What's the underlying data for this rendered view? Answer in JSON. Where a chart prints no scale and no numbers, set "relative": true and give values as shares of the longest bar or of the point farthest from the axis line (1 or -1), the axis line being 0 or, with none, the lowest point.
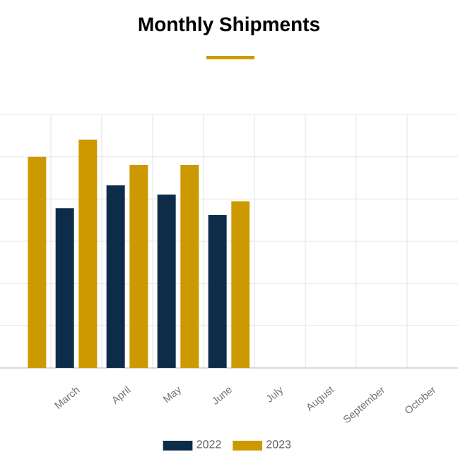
{
  "chart_data": {
    "type": "bar",
    "title": "Monthly Shipments",
    "categories": [
      null,
      "March",
      "April",
      "May",
      "June",
      "July",
      "August",
      "September",
      "October"
    ],
    "relative": true,
    "grid": true,
    "legend": "bottom",
    "series": [
      {
        "name": "2022",
        "color": "#0d2c4a",
        "values": [
          null,
          0.7,
          0.8,
          0.76,
          0.67,
          null,
          null,
          null,
          null
        ]
      },
      {
        "name": "2023",
        "color": "#cc9900",
        "values": [
          0.925,
          1,
          0.89,
          0.89,
          0.73,
          null,
          null,
          null,
          null
        ]
      }
    ]
  }
}
